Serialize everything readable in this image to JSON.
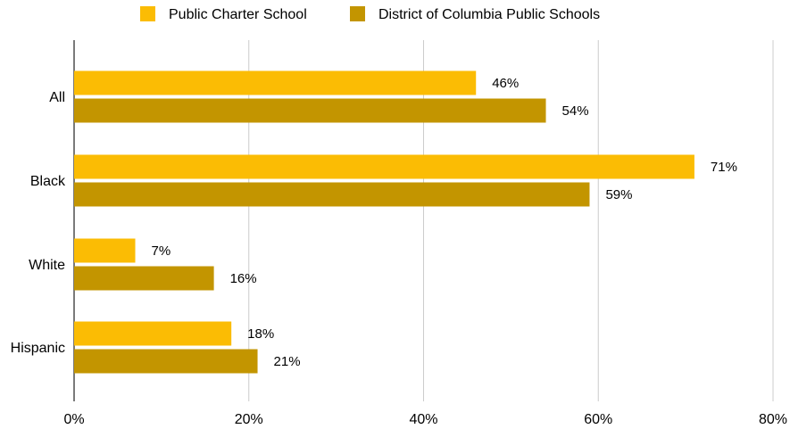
{
  "chart_data": {
    "type": "bar",
    "orientation": "horizontal",
    "categories": [
      "All",
      "Black",
      "White",
      "Hispanic"
    ],
    "series": [
      {
        "name": "Public Charter School",
        "values": [
          46,
          71,
          7,
          18
        ],
        "labels": [
          "46%",
          "71%",
          "7%",
          "18%"
        ]
      },
      {
        "name": "District of Columbia Public Schools",
        "values": [
          54,
          59,
          16,
          21
        ],
        "labels": [
          "54%",
          "59%",
          "16%",
          "21%"
        ]
      }
    ],
    "x_ticks": [
      0,
      20,
      40,
      60,
      80
    ],
    "x_tick_labels": [
      "0%",
      "20%",
      "40%",
      "60%",
      "80%"
    ],
    "xlim": [
      0,
      80
    ],
    "grid": true,
    "legend_position": "top",
    "colors": {
      "series_1": "#FBBC04",
      "series_2": "#C39500",
      "grid": "#CCCCCC",
      "axis": "#333333"
    }
  }
}
